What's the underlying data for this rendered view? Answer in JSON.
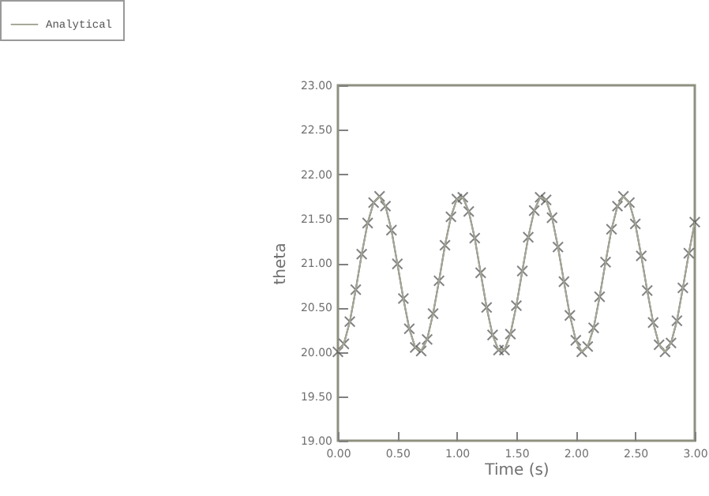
{
  "chart_data": {
    "type": "line",
    "xlabel": "Time (s)",
    "ylabel": "theta",
    "x": [
      0,
      0.05,
      0.1,
      0.15,
      0.2,
      0.25,
      0.3,
      0.35,
      0.4,
      0.45,
      0.5,
      0.55,
      0.6,
      0.65,
      0.7,
      0.75,
      0.8,
      0.85,
      0.9,
      0.95,
      1,
      1.05,
      1.1,
      1.15,
      1.2,
      1.25,
      1.3,
      1.35,
      1.4,
      1.45,
      1.5,
      1.55,
      1.6,
      1.65,
      1.7,
      1.75,
      1.8,
      1.85,
      1.9,
      1.95,
      2,
      2.05,
      2.1,
      2.15,
      2.2,
      2.25,
      2.3,
      2.35,
      2.4,
      2.45,
      2.5,
      2.55,
      2.6,
      2.65,
      2.7,
      2.75,
      2.8,
      2.85,
      2.9,
      2.95,
      3
    ],
    "series": [
      {
        "color": "#505050",
        "marker": "cross",
        "values": [
          20.0,
          20.09,
          20.34,
          20.7,
          21.1,
          21.45,
          21.68,
          21.75,
          21.64,
          21.37,
          20.99,
          20.6,
          20.26,
          20.05,
          20.01,
          20.14,
          20.43,
          20.8,
          21.2,
          21.52,
          21.72,
          21.74,
          21.58,
          21.28,
          20.89,
          20.5,
          20.19,
          20.02,
          20.02,
          20.2,
          20.52,
          20.91,
          21.29,
          21.59,
          21.74,
          21.71,
          21.51,
          21.18,
          20.79,
          20.41,
          20.13,
          20.0,
          20.06,
          20.27,
          20.62,
          21.01,
          21.38,
          21.64,
          21.75,
          21.68,
          21.44,
          21.08,
          20.69,
          20.33,
          20.08,
          20.0,
          20.1,
          20.35,
          20.72,
          21.11,
          21.46
        ]
      },
      {
        "name": "Analytical",
        "color": "#a8a898",
        "values": [
          20.0,
          20.09,
          20.34,
          20.7,
          21.1,
          21.45,
          21.68,
          21.75,
          21.64,
          21.37,
          20.99,
          20.6,
          20.26,
          20.05,
          20.01,
          20.14,
          20.43,
          20.8,
          21.2,
          21.52,
          21.72,
          21.74,
          21.58,
          21.28,
          20.89,
          20.5,
          20.19,
          20.02,
          20.02,
          20.2,
          20.52,
          20.91,
          21.29,
          21.59,
          21.74,
          21.71,
          21.51,
          21.18,
          20.79,
          20.41,
          20.13,
          20.0,
          20.06,
          20.27,
          20.62,
          21.01,
          21.38,
          21.64,
          21.75,
          21.68,
          21.44,
          21.08,
          20.69,
          20.33,
          20.08,
          20.0,
          20.1,
          20.35,
          20.72,
          21.11,
          21.46
        ]
      }
    ],
    "xlim": [
      0,
      3
    ],
    "ylim": [
      19,
      23
    ],
    "xticks": [
      {
        "value": 0,
        "label": "0.00"
      },
      {
        "value": 0.5,
        "label": "0.50"
      },
      {
        "value": 1,
        "label": "1.00"
      },
      {
        "value": 1.5,
        "label": "1.50"
      },
      {
        "value": 2,
        "label": "2.00"
      },
      {
        "value": 2.5,
        "label": "2.50"
      },
      {
        "value": 3,
        "label": "3.00"
      }
    ],
    "yticks": [
      {
        "value": 19,
        "label": "19.00"
      },
      {
        "value": 19.5,
        "label": "19.50"
      },
      {
        "value": 20,
        "label": "20.00"
      },
      {
        "value": 20.5,
        "label": "20.50"
      },
      {
        "value": 21,
        "label": "21.00"
      },
      {
        "value": 21.5,
        "label": "21.50"
      },
      {
        "value": 22,
        "label": "22.00"
      },
      {
        "value": 22.5,
        "label": "22.50"
      },
      {
        "value": 23,
        "label": "23.00"
      }
    ],
    "grid": false,
    "legend": "top left",
    "line_style": "solid"
  }
}
